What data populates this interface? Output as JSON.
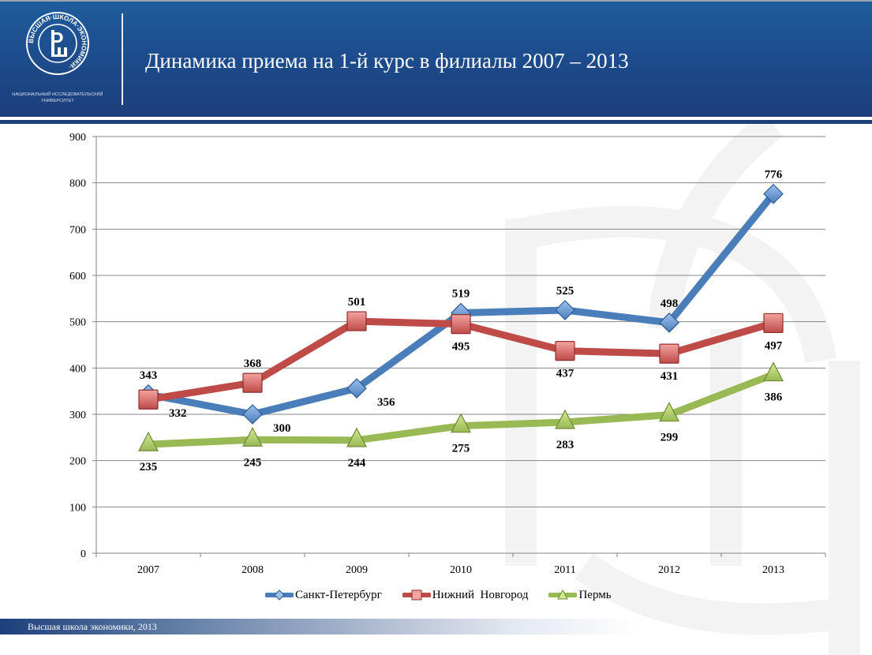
{
  "header": {
    "title": "Динамика приема на 1-й курс в филиалы 2007 – 2013",
    "logo_ring_text": "ВЫСШАЯ·ШКОЛА·ЭКОНОМИКИ·",
    "logo_caption_line1": "НАЦИОНАЛЬНЫЙ ИССЛЕДОВАТЕЛЬСКИЙ",
    "logo_caption_line2": "УНИВЕРСИТЕТ"
  },
  "footer": {
    "text": "Высшая школа экономики, 2013"
  },
  "chart_data": {
    "type": "line",
    "title": "Динамика приема на 1-й курс в филиалы 2007 – 2013",
    "xlabel": "",
    "ylabel": "",
    "categories": [
      "2007",
      "2008",
      "2009",
      "2010",
      "2011",
      "2012",
      "2013"
    ],
    "ylim": [
      0,
      900
    ],
    "yticks": [
      0,
      100,
      200,
      300,
      400,
      500,
      600,
      700,
      800,
      900
    ],
    "grid": true,
    "legend_position": "bottom",
    "series": [
      {
        "name": "Санкт-Петербург",
        "marker": "diamond",
        "color": "#4a7ebb",
        "values": [
          343,
          300,
          356,
          519,
          525,
          498,
          776
        ]
      },
      {
        "name": "Нижний  Новгород",
        "marker": "square",
        "color": "#be4b48",
        "values": [
          332,
          368,
          501,
          495,
          437,
          431,
          497
        ]
      },
      {
        "name": "Пермь",
        "marker": "triangle",
        "color": "#98b954",
        "values": [
          235,
          245,
          244,
          275,
          283,
          299,
          386
        ]
      }
    ],
    "data_label_positions": [
      [
        "above",
        "right",
        "right",
        "above",
        "above",
        "above",
        "above"
      ],
      [
        "right",
        "above",
        "above",
        "below",
        "below",
        "below",
        "below"
      ],
      [
        "below",
        "below",
        "below",
        "below",
        "below",
        "below",
        "below"
      ]
    ]
  }
}
